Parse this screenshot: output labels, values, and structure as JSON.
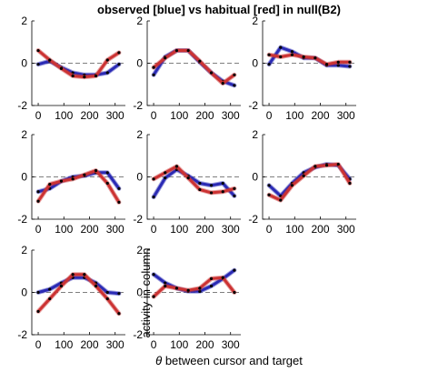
{
  "figure": {
    "title": "observed [blue] vs habitual [red] in null(B2)",
    "ylabel": "activity in column",
    "xlabel_symbol": "θ",
    "xlabel_rest": " between cursor and target"
  },
  "chart_data": [
    {
      "type": "line",
      "row": 0,
      "col": 0,
      "x": [
        0,
        45,
        90,
        135,
        180,
        225,
        270,
        315
      ],
      "ylim": [
        -2,
        2
      ],
      "yticks": [
        -2,
        0,
        2
      ],
      "xticks": [
        0,
        100,
        200,
        300
      ],
      "show_xticks": true,
      "grid": false,
      "series": [
        {
          "color": "#2b2bb5",
          "values": [
            -0.05,
            0.1,
            -0.2,
            -0.45,
            -0.55,
            -0.55,
            -0.45,
            -0.05
          ]
        },
        {
          "color": "#cc3333",
          "values": [
            0.6,
            0.15,
            -0.25,
            -0.6,
            -0.65,
            -0.6,
            0.15,
            0.5
          ]
        }
      ]
    },
    {
      "type": "line",
      "row": 0,
      "col": 1,
      "x": [
        0,
        45,
        90,
        135,
        180,
        225,
        270,
        315
      ],
      "ylim": [
        -2,
        2
      ],
      "yticks": [
        -2,
        0,
        2
      ],
      "xticks": [
        0,
        100,
        200,
        300
      ],
      "show_xticks": true,
      "grid": false,
      "series": [
        {
          "color": "#2b2bb5",
          "values": [
            -0.55,
            0.3,
            0.6,
            0.6,
            0.05,
            -0.45,
            -0.85,
            -1.05
          ]
        },
        {
          "color": "#cc3333",
          "values": [
            -0.2,
            0.25,
            0.6,
            0.6,
            0.1,
            -0.45,
            -0.95,
            -0.55
          ]
        }
      ]
    },
    {
      "type": "line",
      "row": 0,
      "col": 2,
      "x": [
        0,
        45,
        90,
        135,
        180,
        225,
        270,
        315
      ],
      "ylim": [
        -2,
        2
      ],
      "yticks": [
        -2,
        0,
        2
      ],
      "xticks": [
        0,
        100,
        200,
        300
      ],
      "show_xticks": true,
      "grid": false,
      "series": [
        {
          "color": "#2b2bb5",
          "values": [
            -0.05,
            0.75,
            0.55,
            0.25,
            0.25,
            -0.1,
            -0.1,
            -0.15
          ]
        },
        {
          "color": "#cc3333",
          "values": [
            0.4,
            0.3,
            0.4,
            0.3,
            0.25,
            -0.05,
            0.05,
            0.05
          ]
        }
      ]
    },
    {
      "type": "line",
      "row": 1,
      "col": 0,
      "x": [
        0,
        45,
        90,
        135,
        180,
        225,
        270,
        315
      ],
      "ylim": [
        -2,
        2
      ],
      "yticks": [
        -2,
        0,
        2
      ],
      "xticks": [
        0,
        100,
        200,
        300
      ],
      "show_xticks": true,
      "grid": false,
      "series": [
        {
          "color": "#2b2bb5",
          "values": [
            -0.7,
            -0.55,
            -0.2,
            0.0,
            0.05,
            0.2,
            0.2,
            -0.55
          ]
        },
        {
          "color": "#cc3333",
          "values": [
            -1.15,
            -0.35,
            -0.2,
            -0.1,
            0.1,
            0.3,
            -0.3,
            -1.2
          ]
        }
      ]
    },
    {
      "type": "line",
      "row": 1,
      "col": 1,
      "x": [
        0,
        45,
        90,
        135,
        180,
        225,
        270,
        315
      ],
      "ylim": [
        -2,
        2
      ],
      "yticks": [
        -2,
        0,
        2
      ],
      "xticks": [
        0,
        100,
        200,
        300
      ],
      "show_xticks": true,
      "grid": false,
      "series": [
        {
          "color": "#2b2bb5",
          "values": [
            -0.95,
            -0.05,
            0.35,
            0.05,
            -0.3,
            -0.4,
            -0.3,
            -0.9
          ]
        },
        {
          "color": "#cc3333",
          "values": [
            -0.1,
            0.2,
            0.5,
            -0.05,
            -0.6,
            -0.75,
            -0.7,
            -0.55
          ]
        }
      ]
    },
    {
      "type": "line",
      "row": 1,
      "col": 2,
      "x": [
        0,
        45,
        90,
        135,
        180,
        225,
        270,
        315
      ],
      "ylim": [
        -2,
        2
      ],
      "yticks": [
        -2,
        0,
        2
      ],
      "xticks": [
        0,
        100,
        200,
        300
      ],
      "show_xticks": true,
      "grid": false,
      "series": [
        {
          "color": "#2b2bb5",
          "values": [
            -0.4,
            -0.9,
            -0.3,
            0.2,
            0.45,
            0.6,
            0.55,
            -0.1
          ]
        },
        {
          "color": "#cc3333",
          "values": [
            -0.85,
            -1.1,
            -0.4,
            0.05,
            0.5,
            0.55,
            0.6,
            -0.3
          ]
        }
      ]
    },
    {
      "type": "line",
      "row": 2,
      "col": 0,
      "x": [
        0,
        45,
        90,
        135,
        180,
        225,
        270,
        315
      ],
      "ylim": [
        -2,
        2
      ],
      "yticks": [
        -2,
        0,
        2
      ],
      "xticks": [
        0,
        100,
        200,
        300
      ],
      "show_xticks": true,
      "grid": false,
      "series": [
        {
          "color": "#2b2bb5",
          "values": [
            0.0,
            0.15,
            0.45,
            0.7,
            0.7,
            0.45,
            0.0,
            -0.05
          ]
        },
        {
          "color": "#cc3333",
          "values": [
            -0.9,
            -0.3,
            0.3,
            0.85,
            0.85,
            0.3,
            -0.3,
            -1.0
          ]
        }
      ]
    },
    {
      "type": "line",
      "row": 2,
      "col": 1,
      "x": [
        0,
        45,
        90,
        135,
        180,
        225,
        270,
        315
      ],
      "ylim": [
        -2,
        2
      ],
      "yticks": [
        -2,
        0,
        2
      ],
      "xticks": [
        0,
        100,
        200,
        300
      ],
      "show_xticks": true,
      "grid": false,
      "series": [
        {
          "color": "#2b2bb5",
          "values": [
            0.85,
            0.45,
            0.2,
            0.05,
            0.05,
            0.3,
            0.65,
            1.05
          ]
        },
        {
          "color": "#cc3333",
          "values": [
            -0.2,
            0.3,
            0.2,
            0.1,
            0.2,
            0.65,
            0.7,
            0.0
          ]
        }
      ]
    }
  ]
}
